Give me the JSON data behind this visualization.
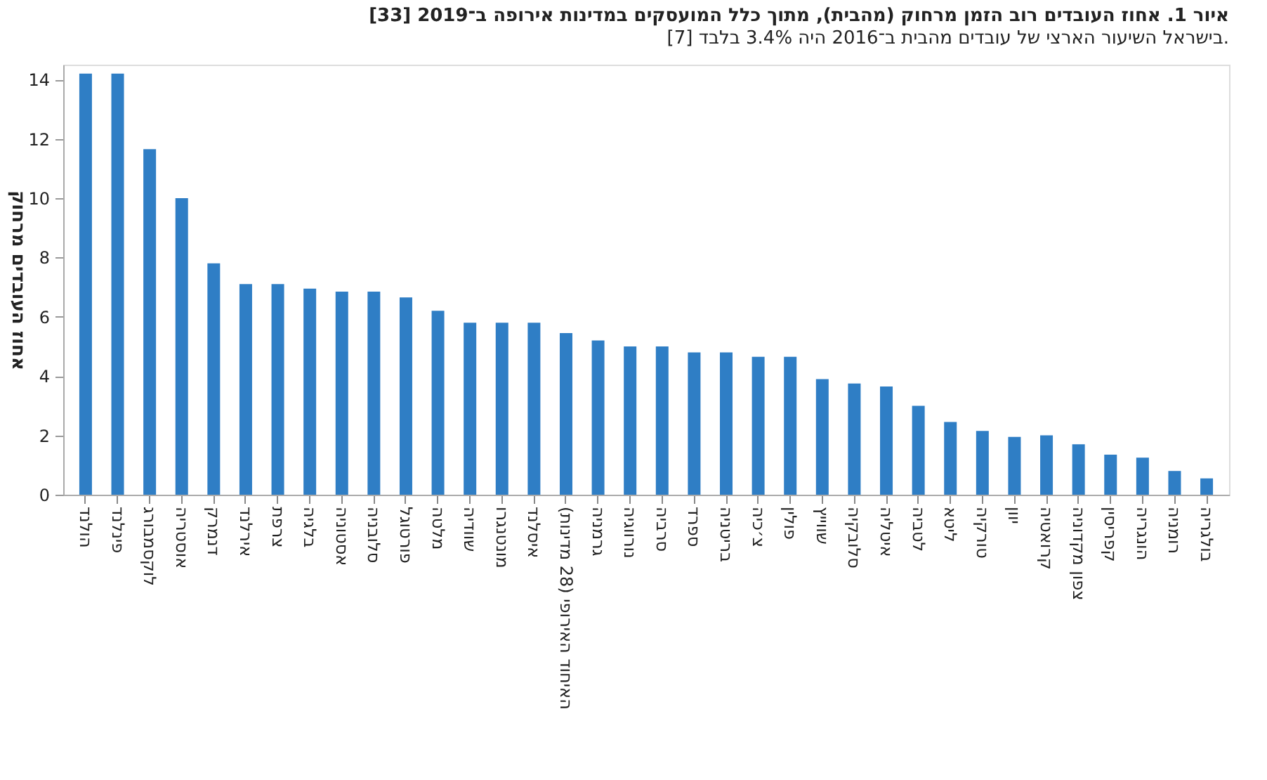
{
  "chart_data": {
    "type": "bar",
    "title": "איור 1. אחוז העובדים רוב הזמן מרחוק (מהבית), מתוך כלל המועסקים במדינות אירופה ב־2019 [33]",
    "subtitle": "בישראל השיעור הארצי של עובדים מהבית ב־2016 היה 3.4% בלבד [7].",
    "ylabel": "אחוז העובדים מרחוק",
    "categories": [
      "הולנד",
      "פינלנד",
      "לוקסמבורג",
      "אוסטריה",
      "דנמרק",
      "אירלנד",
      "צרפת",
      "בלגיה",
      "אסטוניה",
      "סלובניה",
      "פורטוגל",
      "מלטה",
      "שוודיה",
      "מונטנגרו",
      "איסלנד",
      "האיחוד האירופי (28 מדינות)",
      "גרמניה",
      "נורווגיה",
      "סרביה",
      "ספרד",
      "בריטניה",
      "צ׳כיה",
      "פולין",
      "שווייץ",
      "סלובקיה",
      "איטליה",
      "לטביה",
      "ליטא",
      "טורקיה",
      "יוון",
      "קרואטיה",
      "צפון מקדוניה",
      "קפריסין",
      "הונגריה",
      "רומניה",
      "בולגריה"
    ],
    "values": [
      14.2,
      14.2,
      11.65,
      10.0,
      7.8,
      7.1,
      7.1,
      6.95,
      6.85,
      6.85,
      6.65,
      6.2,
      5.8,
      5.8,
      5.8,
      5.45,
      5.2,
      5.0,
      5.0,
      4.8,
      4.8,
      4.65,
      4.65,
      3.9,
      3.75,
      3.65,
      3.0,
      2.45,
      2.15,
      1.95,
      2.0,
      1.7,
      1.35,
      1.25,
      0.8,
      0.55
    ],
    "color": "#2f7ec5",
    "ylim": [
      0,
      14.5
    ],
    "yticks": [
      0,
      2,
      4,
      6,
      8,
      10,
      12,
      14
    ],
    "grid": false
  }
}
